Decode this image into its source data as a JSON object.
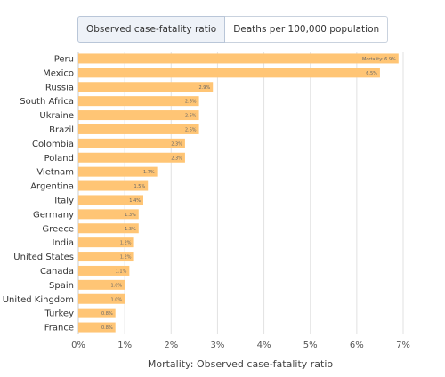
{
  "tabs": [
    {
      "label": "Observed case-fatality ratio",
      "active": true
    },
    {
      "label": "Deaths per 100,000 population",
      "active": false
    }
  ],
  "colors": {
    "bar": "#ffc575",
    "grid": "#e2e2e2",
    "axis": "#cccccc"
  },
  "chart_data": {
    "type": "bar",
    "orientation": "horizontal",
    "categories": [
      "Peru",
      "Mexico",
      "Russia",
      "South Africa",
      "Ukraine",
      "Brazil",
      "Colombia",
      "Poland",
      "Vietnam",
      "Argentina",
      "Italy",
      "Germany",
      "Greece",
      "India",
      "United States",
      "Canada",
      "Spain",
      "United Kingdom",
      "Turkey",
      "France"
    ],
    "values": [
      6.9,
      6.5,
      2.9,
      2.6,
      2.6,
      2.6,
      2.3,
      2.3,
      1.7,
      1.5,
      1.4,
      1.3,
      1.3,
      1.2,
      1.2,
      1.1,
      1.0,
      1.0,
      0.8,
      0.8
    ],
    "data_labels": [
      "Mortality: 6.9%",
      "6.5%",
      "2.9%",
      "2.6%",
      "2.6%",
      "2.6%",
      "2.3%",
      "2.3%",
      "1.7%",
      "1.5%",
      "1.4%",
      "1.3%",
      "1.3%",
      "1.2%",
      "1.2%",
      "1.1%",
      "1.0%",
      "1.0%",
      "0.8%",
      "0.8%"
    ],
    "xlabel": "Mortality: Observed case-fatality ratio",
    "ylabel": "",
    "title": "",
    "xlim": [
      0,
      7
    ],
    "xticks": [
      "0%",
      "1%",
      "2%",
      "3%",
      "4%",
      "5%",
      "6%",
      "7%"
    ],
    "grid": true,
    "legend": "none"
  }
}
